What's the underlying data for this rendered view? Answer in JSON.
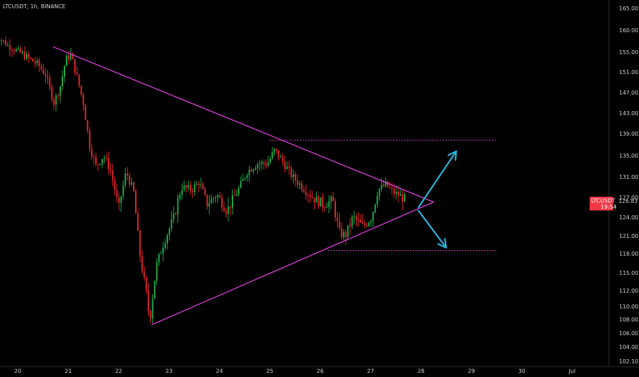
{
  "header": {
    "symbol_label": "LTCUSDT, 1h, BINANCE"
  },
  "price_tag": {
    "symbol": "LTCUSDT",
    "price": "126.83",
    "countdown": "19:54",
    "color": "#f23645"
  },
  "colors": {
    "background": "#000000",
    "up": "#22ab4a",
    "down": "#e5282b",
    "drawing": "#e040e0",
    "arrow": "#29b6e0"
  },
  "chart_data": {
    "type": "candlestick",
    "title": "LTCUSDT, 1h, BINANCE",
    "y_ticks": [
      165.0,
      160.0,
      155.0,
      151.0,
      147.0,
      143.0,
      139.0,
      135.0,
      131.0,
      127.0,
      124.0,
      121.0,
      118.0,
      115.0,
      112.0,
      110.0,
      108.0,
      106.0,
      104.0,
      102.1
    ],
    "y_tick_labels": [
      "165.00",
      "160.00",
      "155.00",
      "151.00",
      "147.00",
      "143.00",
      "139.00",
      "135.00",
      "131.00",
      "127.00",
      "124.00",
      "121.00",
      "118.00",
      "115.00",
      "112.00",
      "110.00",
      "108.00",
      "106.00",
      "104.00",
      "102.10"
    ],
    "x_tick_labels": [
      "20",
      "21",
      "22",
      "23",
      "24",
      "25",
      "26",
      "27",
      "28",
      "29",
      "30",
      "Jul"
    ],
    "x_tick_days": [
      20,
      21,
      22,
      23,
      24,
      25,
      26,
      27,
      28,
      29,
      30,
      31
    ],
    "price_keypoints": [
      [
        19.55,
        159.2
      ],
      [
        19.8,
        156.5
      ],
      [
        20.1,
        154.5
      ],
      [
        20.4,
        152.5
      ],
      [
        20.55,
        150.5
      ],
      [
        20.72,
        145
      ],
      [
        20.85,
        148.5
      ],
      [
        20.95,
        153.5
      ],
      [
        21.05,
        154.5
      ],
      [
        21.15,
        151
      ],
      [
        21.3,
        145
      ],
      [
        21.42,
        137
      ],
      [
        21.55,
        133
      ],
      [
        21.7,
        135
      ],
      [
        21.85,
        132
      ],
      [
        22.0,
        125
      ],
      [
        22.15,
        132
      ],
      [
        22.3,
        128
      ],
      [
        22.42,
        118
      ],
      [
        22.52,
        113
      ],
      [
        22.62,
        108
      ],
      [
        22.75,
        116
      ],
      [
        22.9,
        120
      ],
      [
        23.1,
        124
      ],
      [
        23.25,
        129
      ],
      [
        23.45,
        128.5
      ],
      [
        23.6,
        130
      ],
      [
        23.75,
        126
      ],
      [
        23.95,
        127.5
      ],
      [
        24.15,
        125
      ],
      [
        24.35,
        128
      ],
      [
        24.55,
        132
      ],
      [
        24.75,
        133.5
      ],
      [
        24.95,
        133.5
      ],
      [
        25.1,
        136
      ],
      [
        25.25,
        134
      ],
      [
        25.45,
        131
      ],
      [
        25.65,
        129
      ],
      [
        25.85,
        127
      ],
      [
        26.05,
        126
      ],
      [
        26.25,
        126.5
      ],
      [
        26.38,
        121.5
      ],
      [
        26.5,
        121
      ],
      [
        26.65,
        124
      ],
      [
        26.85,
        122.5
      ],
      [
        27.02,
        124
      ],
      [
        27.15,
        128.5
      ],
      [
        27.3,
        129.5
      ],
      [
        27.45,
        128
      ],
      [
        27.6,
        127.2
      ],
      [
        27.68,
        126.83
      ]
    ],
    "drawings": {
      "upper_trendline": [
        [
          20.7,
          156.2
        ],
        [
          28.25,
          126.3
        ]
      ],
      "lower_trendline": [
        [
          22.65,
          107.2
        ],
        [
          28.25,
          126.3
        ]
      ],
      "resistance_level": {
        "y": 137.8,
        "from": 25.0,
        "to": 29.5
      },
      "support_level": {
        "y": 118.5,
        "from": 26.15,
        "to": 29.5
      },
      "arrow_up": [
        [
          27.95,
          125.5
        ],
        [
          28.7,
          135.8
        ]
      ],
      "arrow_down": [
        [
          27.95,
          125.0
        ],
        [
          28.5,
          119.0
        ]
      ]
    }
  }
}
